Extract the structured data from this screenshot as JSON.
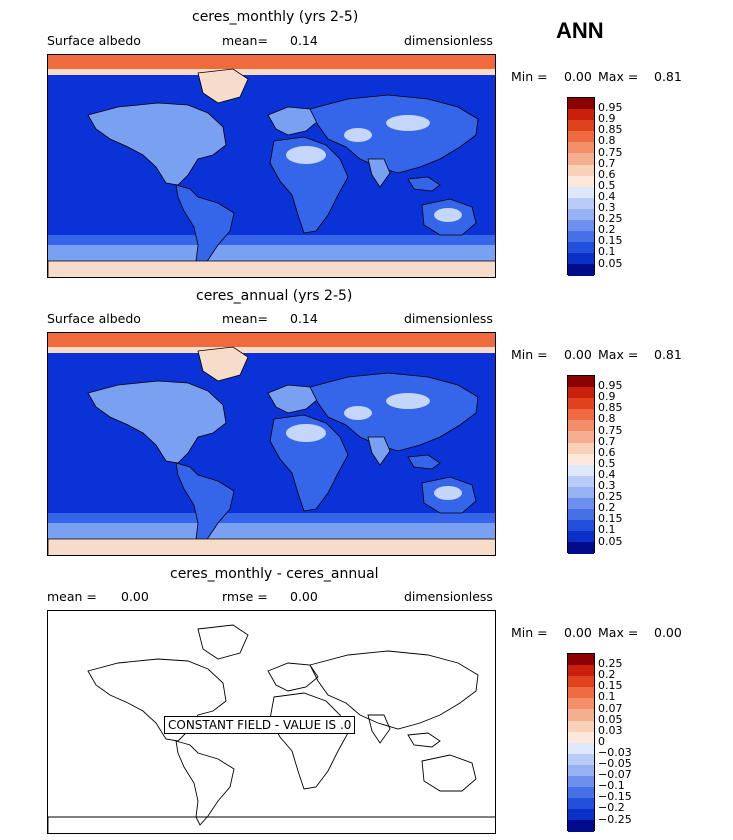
{
  "season": "ANN",
  "colors": {
    "ocean": "#0a32d6",
    "land_lo": "#3566ea",
    "land_mid": "#7aa0f2",
    "land_hi": "#c5d6fb",
    "ice": "#f6dcc9",
    "arctic": "#f06a3d"
  },
  "panels": [
    {
      "title": "ceres_monthly (yrs 2-5)",
      "left_label": "Surface albedo",
      "stat_label": "mean=",
      "stat_value": "0.14",
      "units": "dimensionless",
      "min_label": "Min =",
      "min_value": "0.00",
      "max_label": "Max =",
      "max_value": "0.81",
      "colorbar": {
        "levels": [
          "0.95",
          "0.9",
          "0.85",
          "0.8",
          "0.75",
          "0.7",
          "0.6",
          "0.5",
          "0.4",
          "0.3",
          "0.25",
          "0.2",
          "0.15",
          "0.1",
          "0.05"
        ],
        "colors": [
          "#8b0000",
          "#c8200a",
          "#e0421e",
          "#ef6a40",
          "#f38f68",
          "#f5ae90",
          "#f9d0b8",
          "#fde9dc",
          "#dde8fb",
          "#b8ccf7",
          "#96b2f3",
          "#6d90ee",
          "#4570e6",
          "#2250dd",
          "#0a30c8",
          "#000c8c"
        ]
      }
    },
    {
      "title": "ceres_annual (yrs 2-5)",
      "left_label": "Surface albedo",
      "stat_label": "mean=",
      "stat_value": "0.14",
      "units": "dimensionless",
      "min_label": "Min =",
      "min_value": "0.00",
      "max_label": "Max =",
      "max_value": "0.81",
      "colorbar": {
        "levels": [
          "0.95",
          "0.9",
          "0.85",
          "0.8",
          "0.75",
          "0.7",
          "0.6",
          "0.5",
          "0.4",
          "0.3",
          "0.25",
          "0.2",
          "0.15",
          "0.1",
          "0.05"
        ],
        "colors": [
          "#8b0000",
          "#c8200a",
          "#e0421e",
          "#ef6a40",
          "#f38f68",
          "#f5ae90",
          "#f9d0b8",
          "#fde9dc",
          "#dde8fb",
          "#b8ccf7",
          "#96b2f3",
          "#6d90ee",
          "#4570e6",
          "#2250dd",
          "#0a30c8",
          "#000c8c"
        ]
      }
    },
    {
      "title": "ceres_monthly - ceres_annual",
      "left_label": "mean =",
      "left_value": "0.00",
      "stat_label": "rmse =",
      "stat_value": "0.00",
      "units": "dimensionless",
      "min_label": "Min =",
      "min_value": "0.00",
      "max_label": "Max =",
      "max_value": "0.00",
      "note": "CONSTANT FIELD - VALUE IS .0",
      "colorbar": {
        "levels": [
          "0.25",
          "0.2",
          "0.15",
          "0.1",
          "0.07",
          "0.05",
          "0.03",
          "0",
          "−0.03",
          "−0.05",
          "−0.07",
          "−0.1",
          "−0.15",
          "−0.2",
          "−0.25"
        ],
        "colors": [
          "#8b0000",
          "#c8200a",
          "#e0421e",
          "#ef6a40",
          "#f38f68",
          "#f5ae90",
          "#f9d0b8",
          "#fde9dc",
          "#dde8fb",
          "#b8ccf7",
          "#96b2f3",
          "#6d90ee",
          "#4570e6",
          "#2250dd",
          "#0a30c8",
          "#000c8c"
        ]
      }
    }
  ]
}
